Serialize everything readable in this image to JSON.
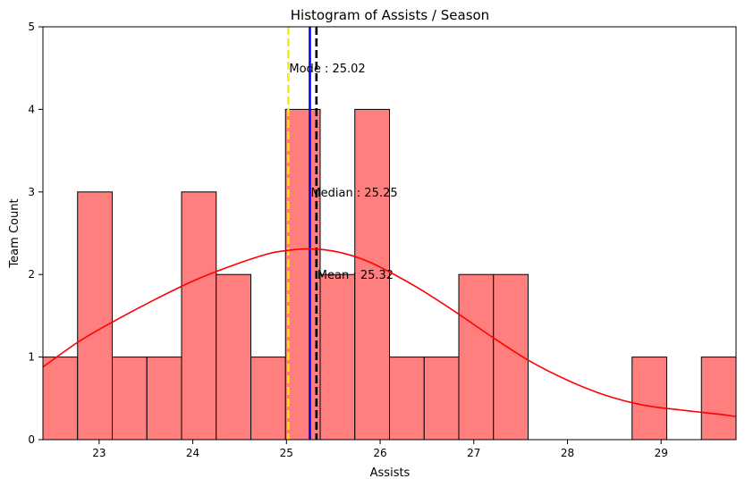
{
  "chart_data": {
    "type": "bar",
    "title": "Histogram of Assists / Season",
    "xlabel": "Assists",
    "ylabel": "Team Count",
    "xlim": [
      22.4,
      29.8
    ],
    "ylim": [
      0,
      5
    ],
    "xticks": [
      "23",
      "24",
      "25",
      "26",
      "27",
      "28",
      "29"
    ],
    "xtick_values": [
      23,
      24,
      25,
      26,
      27,
      28,
      29
    ],
    "yticks": [
      "0",
      "1",
      "2",
      "3",
      "4",
      "5"
    ],
    "ytick_values": [
      0,
      1,
      2,
      3,
      4,
      5
    ],
    "bins": [
      {
        "start": 22.4,
        "end": 22.77,
        "count": 1
      },
      {
        "start": 22.77,
        "end": 23.14,
        "count": 3
      },
      {
        "start": 23.14,
        "end": 23.51,
        "count": 1
      },
      {
        "start": 23.51,
        "end": 23.88,
        "count": 1
      },
      {
        "start": 23.88,
        "end": 24.25,
        "count": 3
      },
      {
        "start": 24.25,
        "end": 24.62,
        "count": 2
      },
      {
        "start": 24.62,
        "end": 24.99,
        "count": 1
      },
      {
        "start": 24.99,
        "end": 25.36,
        "count": 4
      },
      {
        "start": 25.36,
        "end": 25.73,
        "count": 2
      },
      {
        "start": 25.73,
        "end": 26.1,
        "count": 4
      },
      {
        "start": 26.1,
        "end": 26.47,
        "count": 1
      },
      {
        "start": 26.47,
        "end": 26.84,
        "count": 1
      },
      {
        "start": 26.84,
        "end": 27.21,
        "count": 2
      },
      {
        "start": 27.21,
        "end": 27.58,
        "count": 2
      },
      {
        "start": 27.58,
        "end": 27.95,
        "count": 0
      },
      {
        "start": 27.95,
        "end": 28.32,
        "count": 0
      },
      {
        "start": 28.32,
        "end": 28.69,
        "count": 0
      },
      {
        "start": 28.69,
        "end": 29.06,
        "count": 1
      },
      {
        "start": 29.06,
        "end": 29.43,
        "count": 0
      },
      {
        "start": 29.43,
        "end": 29.8,
        "count": 1
      }
    ],
    "kde": {
      "x": [
        22.4,
        22.8,
        23.2,
        23.6,
        24.0,
        24.4,
        24.8,
        25.0,
        25.2,
        25.4,
        25.6,
        25.8,
        26.0,
        26.4,
        26.8,
        27.2,
        27.6,
        28.0,
        28.4,
        28.8,
        29.2,
        29.6,
        29.8
      ],
      "y": [
        0.88,
        1.2,
        1.46,
        1.7,
        1.92,
        2.1,
        2.25,
        2.29,
        2.31,
        2.3,
        2.26,
        2.19,
        2.09,
        1.84,
        1.55,
        1.24,
        0.95,
        0.72,
        0.54,
        0.42,
        0.36,
        0.31,
        0.28
      ]
    },
    "reference_lines": [
      {
        "name": "mode",
        "value": 25.02,
        "label": "Mode : 25.02",
        "color": "#ffea00",
        "style": "dashed",
        "label_y": 4.5
      },
      {
        "name": "median",
        "value": 25.25,
        "label": "Median : 25.25",
        "color": "#0000ff",
        "style": "solid",
        "label_y": 3.0
      },
      {
        "name": "mean",
        "value": 25.32,
        "label": "Mean : 25.32",
        "color": "#000000",
        "style": "dashed",
        "label_y": 2.0
      }
    ],
    "colors": {
      "bar_fill": "#ff7f7f",
      "bar_edge": "#000000",
      "kde_line": "#ff0000"
    },
    "grid": false
  }
}
